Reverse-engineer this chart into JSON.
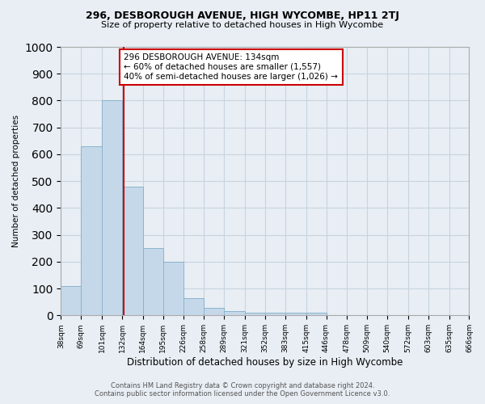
{
  "title": "296, DESBOROUGH AVENUE, HIGH WYCOMBE, HP11 2TJ",
  "subtitle": "Size of property relative to detached houses in High Wycombe",
  "xlabel": "Distribution of detached houses by size in High Wycombe",
  "ylabel": "Number of detached properties",
  "footer1": "Contains HM Land Registry data © Crown copyright and database right 2024.",
  "footer2": "Contains public sector information licensed under the Open Government Licence v3.0.",
  "bin_edges": [
    38,
    69,
    101,
    132,
    164,
    195,
    226,
    258,
    289,
    321,
    352,
    383,
    415,
    446,
    478,
    509,
    540,
    572,
    603,
    635,
    666
  ],
  "bar_heights": [
    110,
    630,
    800,
    480,
    250,
    200,
    63,
    28,
    15,
    10,
    10,
    10,
    10,
    0,
    0,
    0,
    0,
    0,
    0,
    0
  ],
  "bin_labels": [
    "38sqm",
    "69sqm",
    "101sqm",
    "132sqm",
    "164sqm",
    "195sqm",
    "226sqm",
    "258sqm",
    "289sqm",
    "321sqm",
    "352sqm",
    "383sqm",
    "415sqm",
    "446sqm",
    "478sqm",
    "509sqm",
    "540sqm",
    "572sqm",
    "603sqm",
    "635sqm",
    "666sqm"
  ],
  "bar_color": "#c5d8ea",
  "bar_edge_color": "#8ab4cc",
  "grid_color": "#c8d4e0",
  "background_color": "#e8eef4",
  "vline_x": 134,
  "vline_color": "#cc0000",
  "annotation_text": "296 DESBOROUGH AVENUE: 134sqm\n← 60% of detached houses are smaller (1,557)\n40% of semi-detached houses are larger (1,026) →",
  "annotation_box_facecolor": "#ffffff",
  "annotation_box_edgecolor": "#cc0000",
  "ylim": [
    0,
    1000
  ],
  "yticks": [
    0,
    100,
    200,
    300,
    400,
    500,
    600,
    700,
    800,
    900,
    1000
  ]
}
